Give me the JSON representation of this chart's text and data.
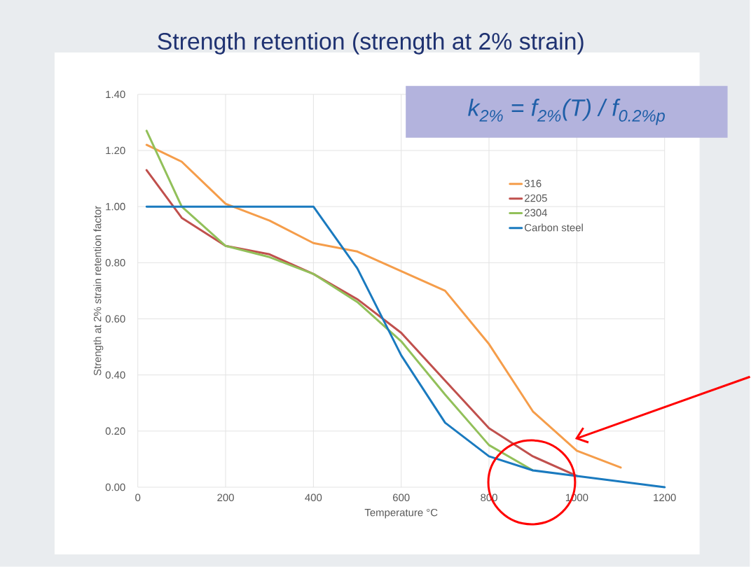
{
  "chart_data": {
    "type": "line",
    "title": "Strength retention (strength at 2% strain)",
    "xlabel": "Temperature °C",
    "ylabel": "Strength at 2% strain retention factor",
    "annotations": [
      "k$_{2%}$ = f$_{2%}$(T) / f$_{0.2%p}$"
    ],
    "xlim": [
      0,
      1200
    ],
    "ylim": [
      0,
      1.4
    ],
    "xticks": [
      0,
      200,
      400,
      600,
      800,
      1000,
      1200
    ],
    "yticks": [
      {
        "value": 0,
        "label": "0.00"
      },
      {
        "value": 0.2,
        "label": "0.20"
      },
      {
        "value": 0.4,
        "label": "0.40"
      },
      {
        "value": 0.6,
        "label": "0.60"
      },
      {
        "value": 0.8,
        "label": "0.80"
      },
      {
        "value": 1.0,
        "label": "1.00"
      },
      {
        "value": 1.2,
        "label": "1.20"
      },
      {
        "value": 1.4,
        "label": "1.40"
      }
    ],
    "grid": true,
    "legend": "right",
    "series": [
      {
        "name": "316",
        "color": "#f59d4a",
        "x": [
          20,
          100,
          200,
          300,
          400,
          500,
          600,
          700,
          800,
          900,
          1000,
          1100
        ],
        "values": [
          1.22,
          1.16,
          1.01,
          0.95,
          0.87,
          0.84,
          0.77,
          0.7,
          0.51,
          0.27,
          0.13,
          0.07
        ]
      },
      {
        "name": "2205",
        "color": "#c0504d",
        "x": [
          20,
          100,
          200,
          300,
          400,
          500,
          600,
          700,
          800,
          900,
          1000
        ],
        "values": [
          1.13,
          0.96,
          0.86,
          0.83,
          0.76,
          0.67,
          0.55,
          0.38,
          0.21,
          0.11,
          0.04
        ]
      },
      {
        "name": "2304",
        "color": "#92c05a",
        "x": [
          20,
          100,
          200,
          300,
          400,
          500,
          600,
          700,
          800,
          900
        ],
        "values": [
          1.27,
          1.0,
          0.86,
          0.82,
          0.76,
          0.66,
          0.52,
          0.33,
          0.15,
          0.06
        ]
      },
      {
        "name": "Carbon steel",
        "color": "#1a7abf",
        "x": [
          20,
          100,
          200,
          300,
          400,
          500,
          600,
          700,
          800,
          900,
          1000,
          1100,
          1200
        ],
        "values": [
          1.0,
          1.0,
          1.0,
          1.0,
          1.0,
          0.78,
          0.47,
          0.23,
          0.11,
          0.06,
          0.04,
          0.02,
          0.0
        ]
      }
    ]
  }
}
